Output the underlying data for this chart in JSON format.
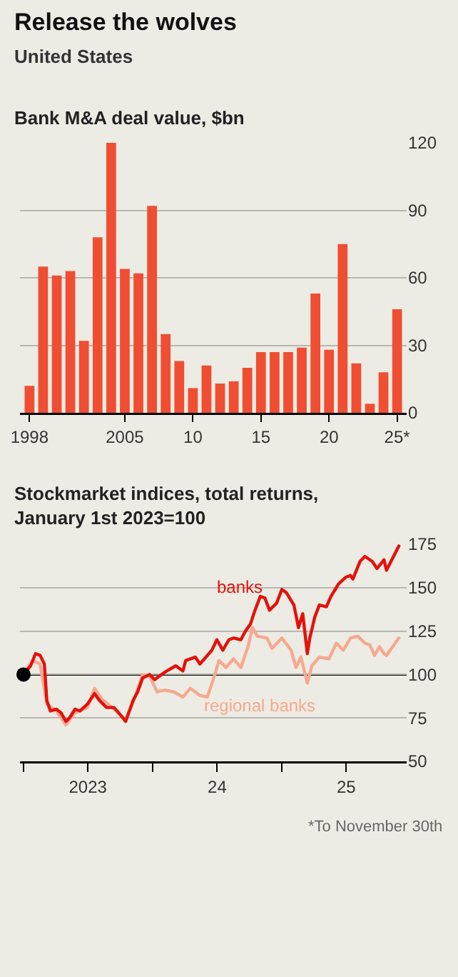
{
  "chart_data": [
    {
      "type": "bar",
      "title": "Release the wolves",
      "subtitle": "United States",
      "ylabel": "Bank M&A deal value, $bn",
      "categories": [
        "1998",
        null,
        null,
        null,
        null,
        null,
        null,
        "2005",
        null,
        null,
        null,
        null,
        "10",
        null,
        null,
        null,
        null,
        "15",
        null,
        null,
        null,
        null,
        "20",
        null,
        null,
        null,
        null,
        "25*"
      ],
      "values": [
        12,
        65,
        61,
        63,
        32,
        78,
        120,
        64,
        62,
        92,
        35,
        23,
        11,
        21,
        13,
        14,
        20,
        27,
        27,
        27,
        29,
        53,
        28,
        75,
        22,
        4,
        18,
        46
      ],
      "color": "#f04e33",
      "ylim": [
        0,
        120
      ],
      "yticks": [
        0,
        30,
        60,
        90,
        120
      ],
      "grid": "y"
    },
    {
      "type": "line",
      "title": "Stockmarket indices, total returns, January 1st 2023=100",
      "series": [
        {
          "name": "regional banks",
          "color": "#f6a98f",
          "x": [
            "2023-01-01",
            "2023-01-27",
            "2023-02-17",
            "2023-03-08",
            "2023-04-04",
            "2023-05-01",
            "2023-05-27",
            "2023-07-01",
            "2023-07-21",
            "2023-08-10",
            "2023-09-14",
            "2023-10-17",
            "2023-11-07",
            "2023-12-04",
            "2023-12-24",
            "2024-01-14",
            "2024-02-04",
            "2024-03-01",
            "2024-03-27",
            "2024-04-17",
            "2024-05-14",
            "2024-06-04",
            "2024-06-24",
            "2024-07-07",
            "2024-07-27",
            "2024-08-17",
            "2024-09-07",
            "2024-09-27",
            "2024-10-10",
            "2024-10-24",
            "2024-11-20",
            "2024-12-04",
            "2025-01-01",
            "2025-01-27",
            "2025-02-10",
            "2025-02-24",
            "2025-03-14",
            "2025-03-27",
            "2025-04-17",
            "2025-05-14",
            "2025-06-04",
            "2025-06-24",
            "2025-07-14",
            "2025-08-04",
            "2025-08-24",
            "2025-09-07",
            "2025-09-20",
            "2025-10-04",
            "2025-10-17",
            "2025-10-24",
            "2025-11-28"
          ],
          "values": [
            100,
            108,
            106,
            83,
            79,
            71,
            78,
            81,
            92,
            86,
            80,
            74,
            84,
            100,
            99,
            90,
            91,
            90,
            87,
            92,
            88,
            87,
            99,
            108,
            104,
            109,
            104,
            116,
            127,
            122,
            121,
            115,
            121,
            114,
            104,
            110,
            95,
            105,
            110,
            109,
            118,
            114,
            121,
            122,
            118,
            117,
            111,
            116,
            112,
            111,
            121
          ]
        },
        {
          "name": "banks",
          "color": "#e3120b",
          "x": [
            "2023-01-01",
            "2023-01-21",
            "2023-02-04",
            "2023-02-17",
            "2023-03-01",
            "2023-03-08",
            "2023-03-18",
            "2023-04-04",
            "2023-04-17",
            "2023-05-01",
            "2023-05-11",
            "2023-05-27",
            "2023-06-10",
            "2023-07-01",
            "2023-07-21",
            "2023-08-04",
            "2023-08-24",
            "2023-09-14",
            "2023-09-27",
            "2023-10-17",
            "2023-11-07",
            "2023-11-20",
            "2023-12-04",
            "2023-12-24",
            "2024-01-07",
            "2024-01-20",
            "2024-02-10",
            "2024-03-07",
            "2024-03-27",
            "2024-04-04",
            "2024-05-01",
            "2024-05-14",
            "2024-05-27",
            "2024-06-17",
            "2024-07-01",
            "2024-07-18",
            "2024-08-04",
            "2024-08-17",
            "2024-09-07",
            "2024-09-20",
            "2024-10-04",
            "2024-10-17",
            "2024-11-01",
            "2024-11-14",
            "2024-11-27",
            "2024-12-17",
            "2025-01-01",
            "2025-01-14",
            "2025-02-04",
            "2025-02-17",
            "2025-03-01",
            "2025-03-14",
            "2025-03-21",
            "2025-04-04",
            "2025-04-17",
            "2025-05-07",
            "2025-05-20",
            "2025-06-01",
            "2025-06-10",
            "2025-07-01",
            "2025-07-14",
            "2025-07-21",
            "2025-08-10",
            "2025-08-24",
            "2025-09-14",
            "2025-09-27",
            "2025-10-17",
            "2025-10-24",
            "2025-11-28"
          ],
          "values": [
            100,
            105,
            112,
            111,
            106,
            85,
            79,
            80,
            78,
            73,
            75,
            80,
            79,
            83,
            89,
            85,
            81,
            81,
            78,
            73,
            85,
            90,
            98,
            100,
            97,
            99,
            102,
            105,
            102,
            108,
            110,
            106,
            109,
            114,
            120,
            114,
            120,
            121,
            120,
            125,
            129,
            137,
            145,
            144,
            137,
            141,
            149,
            147,
            140,
            127,
            135,
            112,
            121,
            133,
            140,
            139,
            145,
            149,
            152,
            156,
            157,
            155,
            165,
            168,
            165,
            161,
            166,
            160,
            174
          ]
        },
        {
          "color": "#000000",
          "marker": "circle",
          "x": [
            "2023-01-01"
          ],
          "values": [
            100
          ]
        }
      ],
      "xlim": [
        "2022-12-22",
        "2025-12-20"
      ],
      "xticks": [
        {
          "value": "2023-01-01",
          "label": null
        },
        {
          "value": "2023-07-02",
          "label": "2023"
        },
        {
          "value": "2024-01-01",
          "label": null
        },
        {
          "value": "2024-07-02",
          "label": "24"
        },
        {
          "value": "2025-01-01",
          "label": null
        },
        {
          "value": "2025-07-02",
          "label": "25"
        }
      ],
      "ylim": [
        50,
        175
      ],
      "yticks": [
        50,
        75,
        100,
        125,
        150,
        175
      ],
      "grid": "y",
      "marker": "none",
      "line_style": "solid",
      "ref_lines": [
        {
          "axis": "y",
          "value": 100,
          "color": "#000000"
        }
      ],
      "annotations": [
        "*To November 30th"
      ]
    }
  ]
}
